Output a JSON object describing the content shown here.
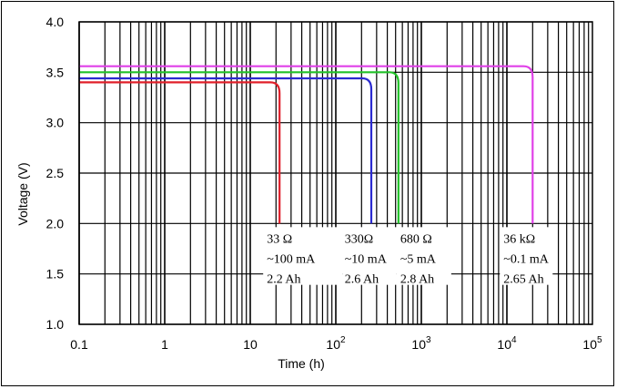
{
  "chart_data": {
    "type": "line",
    "title": "",
    "xlabel": "Time (h)",
    "ylabel": "Voltage (V)",
    "x_scale": "log",
    "xlim": [
      0.1,
      100000
    ],
    "ylim": [
      1.0,
      4.0
    ],
    "grid": true,
    "y_ticks": [
      "1.0",
      "1.5",
      "2.0",
      "2.5",
      "3.0",
      "3.5",
      "4.0"
    ],
    "x_ticks": [
      {
        "base": "0.1",
        "exp": ""
      },
      {
        "base": "1",
        "exp": ""
      },
      {
        "base": "10",
        "exp": ""
      },
      {
        "base": "10",
        "exp": "2"
      },
      {
        "base": "10",
        "exp": "3"
      },
      {
        "base": "10",
        "exp": "4"
      },
      {
        "base": "10",
        "exp": "5"
      }
    ],
    "series": [
      {
        "color": "#e0202a",
        "plateau_v": 3.4,
        "end_time_h": 22
      },
      {
        "color": "#2a2ad0",
        "plateau_v": 3.44,
        "end_time_h": 260
      },
      {
        "color": "#22c22a",
        "plateau_v": 3.5,
        "end_time_h": 540
      },
      {
        "color": "#e040e8",
        "plateau_v": 3.56,
        "end_time_h": 20000
      }
    ],
    "annotations": [
      {
        "lines": [
          "33 Ω",
          "~100 mA",
          "2.2 Ah"
        ],
        "x_at": 22
      },
      {
        "lines": [
          "330Ω",
          "~10 mA",
          "2.6 Ah"
        ],
        "x_at": 240
      },
      {
        "lines": [
          "680 Ω",
          "~5 mA",
          "2.8 Ah"
        ],
        "x_at": 540
      },
      {
        "lines": [
          "36 kΩ",
          "~0.1 mA",
          "2.65 Ah"
        ],
        "x_at": 20000
      }
    ]
  }
}
